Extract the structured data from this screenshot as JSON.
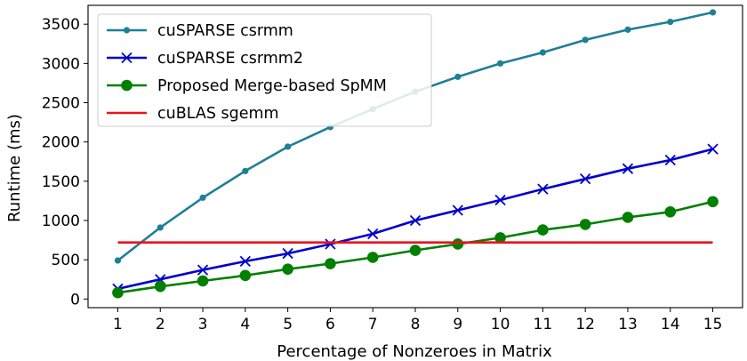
{
  "chart_data": {
    "type": "line",
    "title": "",
    "xlabel": "Percentage of Nonzeroes in Matrix",
    "ylabel": "Runtime (ms)",
    "x": [
      1,
      2,
      3,
      4,
      5,
      6,
      7,
      8,
      9,
      10,
      11,
      12,
      13,
      14,
      15
    ],
    "xlim": [
      0.3,
      15.7
    ],
    "ylim": [
      -110,
      3740
    ],
    "xticks": [
      "1",
      "2",
      "3",
      "4",
      "5",
      "6",
      "7",
      "8",
      "9",
      "10",
      "11",
      "12",
      "13",
      "14",
      "15"
    ],
    "yticks": [
      0,
      500,
      1000,
      1500,
      2000,
      2500,
      3000,
      3500
    ],
    "ytick_labels": [
      "0",
      "500",
      "1000",
      "1500",
      "2000",
      "2500",
      "3000",
      "3500"
    ],
    "grid": false,
    "legend_position": "top-left",
    "series": [
      {
        "name": "cuSPARSE csrmm",
        "color": "#1f7f96",
        "marker": "dot",
        "values": [
          490,
          910,
          1290,
          1630,
          1940,
          2190,
          2420,
          2640,
          2830,
          3000,
          3140,
          3300,
          3430,
          3530,
          3650
        ]
      },
      {
        "name": "cuSPARSE csrmm2",
        "color": "#0000cc",
        "marker": "x",
        "values": [
          130,
          250,
          370,
          480,
          580,
          700,
          830,
          1000,
          1130,
          1260,
          1400,
          1530,
          1660,
          1770,
          1910
        ]
      },
      {
        "name": "Proposed Merge-based SpMM",
        "color": "#008000",
        "marker": "circle",
        "values": [
          80,
          160,
          230,
          300,
          380,
          450,
          530,
          620,
          700,
          780,
          880,
          950,
          1040,
          1110,
          1240
        ]
      },
      {
        "name": "cuBLAS sgemm",
        "color": "#e8141c",
        "marker": "none",
        "values": [
          720,
          720,
          720,
          720,
          720,
          720,
          720,
          720,
          720,
          720,
          720,
          720,
          720,
          720,
          720
        ]
      }
    ]
  }
}
